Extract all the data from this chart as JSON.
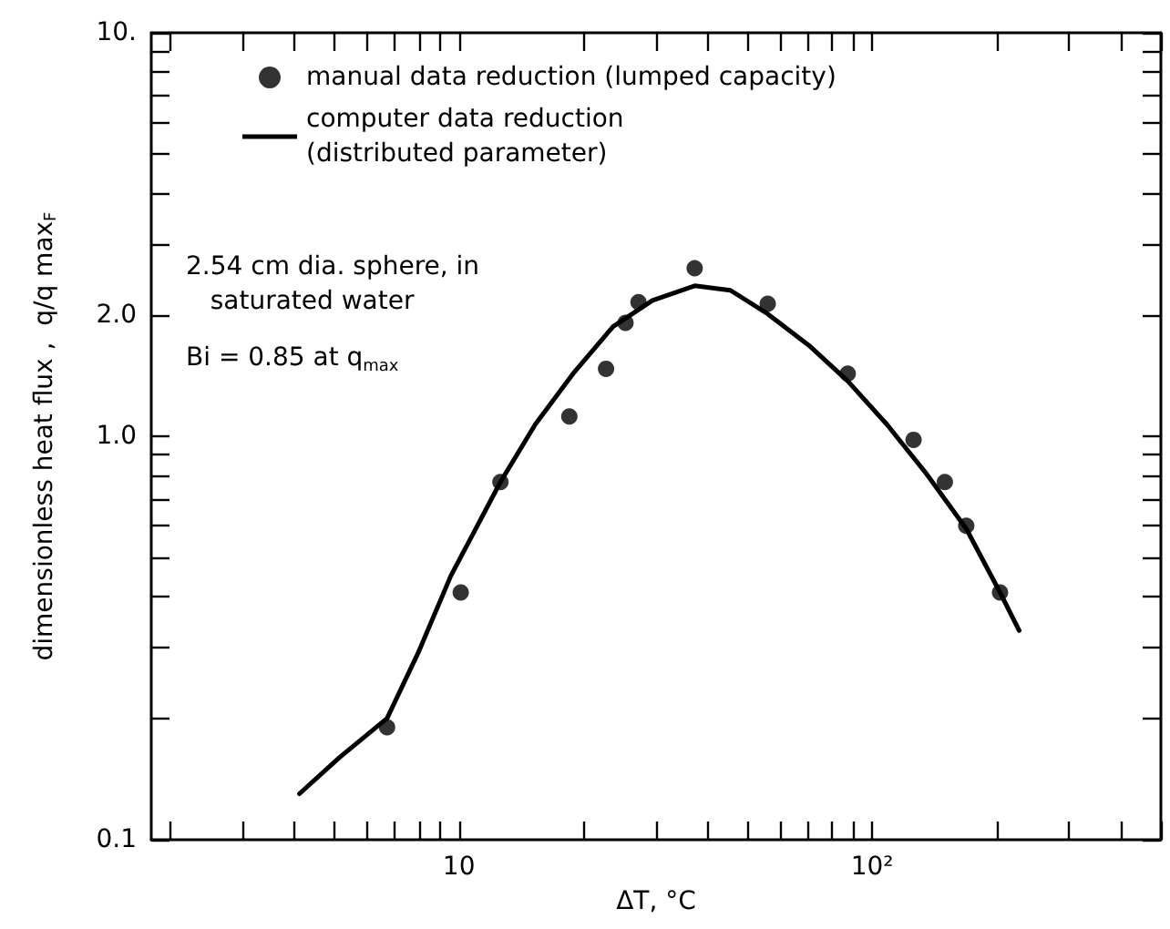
{
  "chart_data": {
    "type": "scatter",
    "xlabel": "ΔT, °C",
    "ylabel": "dimensionless heat flux ,  q/q max$_{F}$",
    "log": "xy",
    "grid": false,
    "legend": "top left",
    "xlim": [
      1.8,
      500
    ],
    "xticks": [
      {
        "value": 2,
        "label": null
      },
      {
        "value": 3,
        "label": null
      },
      {
        "value": 4,
        "label": null
      },
      {
        "value": 5,
        "label": null
      },
      {
        "value": 6,
        "label": null
      },
      {
        "value": 7,
        "label": null
      },
      {
        "value": 8,
        "label": null
      },
      {
        "value": 9,
        "label": null
      },
      {
        "value": 10,
        "label": "10"
      },
      {
        "value": 20,
        "label": null
      },
      {
        "value": 30,
        "label": null
      },
      {
        "value": 40,
        "label": null
      },
      {
        "value": 50,
        "label": null
      },
      {
        "value": 60,
        "label": null
      },
      {
        "value": 70,
        "label": null
      },
      {
        "value": 80,
        "label": null
      },
      {
        "value": 90,
        "label": null
      },
      {
        "value": 100,
        "label": "10²"
      },
      {
        "value": 200,
        "label": null
      },
      {
        "value": 300,
        "label": null
      },
      {
        "value": 400,
        "label": null
      },
      {
        "value": 500,
        "label": null
      }
    ],
    "ylim": [
      0.1,
      10
    ],
    "yticks": [
      0.1,
      {
        "value": 0.2,
        "label": null
      },
      {
        "value": 0.3,
        "label": null
      },
      {
        "value": 0.4,
        "label": null
      },
      {
        "value": 0.5,
        "label": null
      },
      {
        "value": 0.6,
        "label": null
      },
      {
        "value": 0.7,
        "label": null
      },
      {
        "value": 0.8,
        "label": null
      },
      {
        "value": 0.9,
        "label": null
      },
      {
        "value": 1,
        "label": "1.0"
      },
      {
        "value": 2,
        "label": "2.0"
      },
      {
        "value": 3,
        "label": null
      },
      {
        "value": 4,
        "label": null
      },
      {
        "value": 5,
        "label": null
      },
      {
        "value": 6,
        "label": null
      },
      {
        "value": 7,
        "label": null
      },
      {
        "value": 8,
        "label": null
      },
      {
        "value": 9,
        "label": null
      },
      {
        "value": 10,
        "label": "10."
      }
    ],
    "annotations": [
      "2.54 cm dia. sphere, in\n   saturated water",
      "Bi = 0.85 at q$_{max}$"
    ],
    "series": [
      {
        "name": "manual data reduction (lumped capacity)",
        "type": "scatter",
        "marker": "circle",
        "color": "#000000",
        "x": [
          6.7,
          10.1,
          12.6,
          18.5,
          22.7,
          25.3,
          27.2,
          37.2,
          55.9,
          87.3,
          126,
          150,
          169,
          204
        ],
        "values": [
          0.19,
          0.41,
          0.77,
          1.12,
          1.47,
          1.91,
          2.15,
          2.61,
          2.13,
          1.43,
          0.98,
          0.77,
          0.6,
          0.41
        ]
      },
      {
        "name": "computer data reduction\n(distributed parameter)",
        "type": "line",
        "marker": "none",
        "line_style": "solid",
        "color": "#000000",
        "x": [
          4.11,
          5.14,
          6.7,
          7.96,
          9.55,
          12.6,
          15.3,
          19,
          23.6,
          29.4,
          37.2,
          45.4,
          55.9,
          70.3,
          87.3,
          108.6,
          135,
          169,
          204,
          227
        ],
        "values": [
          0.13,
          0.16,
          0.2,
          0.29,
          0.45,
          0.77,
          1.07,
          1.44,
          1.87,
          2.17,
          2.36,
          2.3,
          2.01,
          1.68,
          1.37,
          1.07,
          0.81,
          0.59,
          0.41,
          0.33
        ]
      }
    ]
  }
}
